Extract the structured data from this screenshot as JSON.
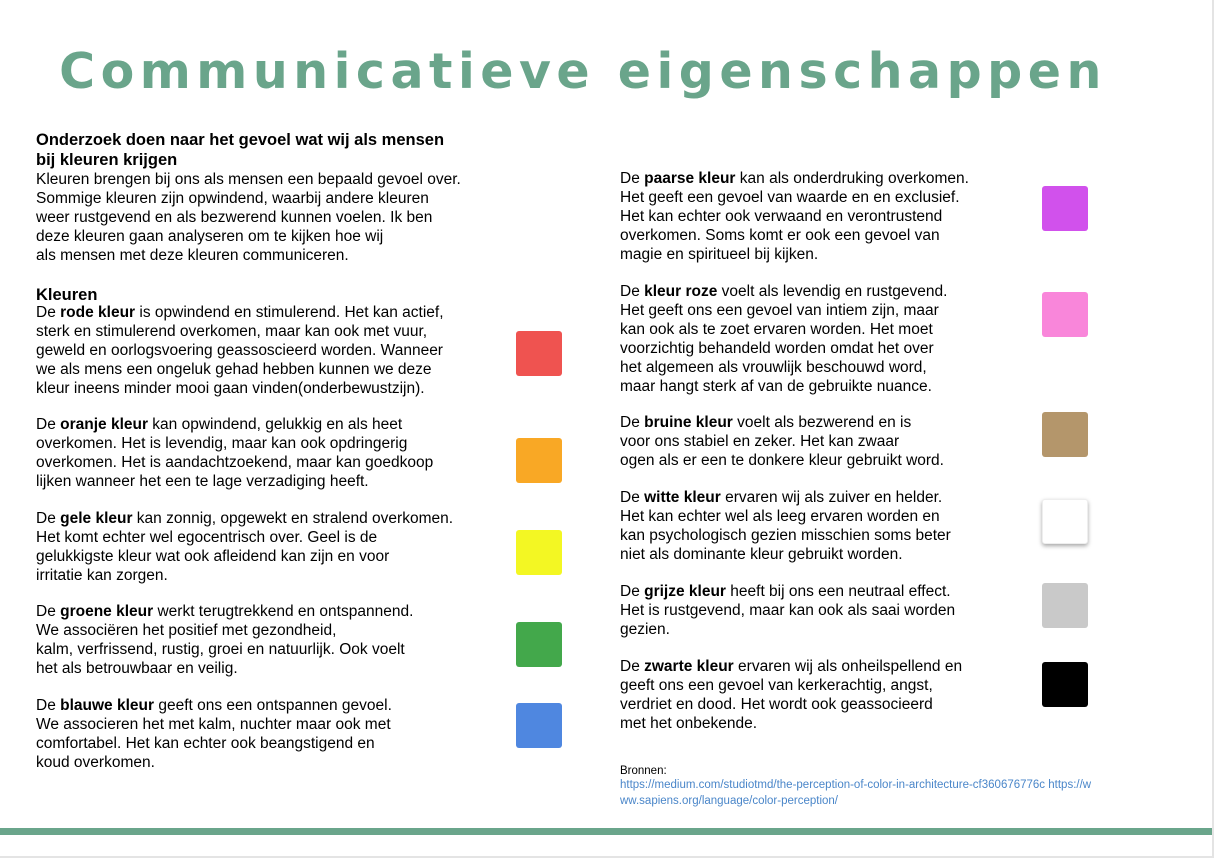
{
  "title": "Communicatieve eigenschappen",
  "intro": {
    "heading": "Onderzoek doen naar het gevoel wat wij als mensen\nbij kleuren krijgen",
    "text": "Kleuren brengen bij ons als mensen een bepaald gevoel over.\nSommige kleuren zijn opwindend, waarbij andere kleuren\nweer rustgevend en als bezwerend kunnen voelen. Ik ben\ndeze kleuren gaan analyseren om te kijken hoe wij\nals mensen met deze kleuren communiceren."
  },
  "section_heading": "Kleuren",
  "colors": [
    {
      "id": "red",
      "pre": "De ",
      "bold": "rode kleur",
      "post": " is opwindend en stimulerend. Het kan actief,\nsterk en stimulerend overkomen, maar kan ook met vuur,\ngeweld en oorlogsvoering geassoscieerd worden. Wanneer\nwe als mens een ongeluk gehad hebben kunnen we deze\nkleur ineens minder mooi gaan vinden(onderbewustzijn).",
      "swatch": "#ef5350"
    },
    {
      "id": "orange",
      "pre": "De ",
      "bold": "oranje kleur",
      "post": " kan opwindend, gelukkig en als heet\noverkomen. Het is levendig, maar kan ook opdringerig\noverkomen. Het is aandachtzoekend, maar kan goedkoop\nlijken wanneer het een te lage verzadiging heeft.",
      "swatch": "#f9a825"
    },
    {
      "id": "yellow",
      "pre": "De ",
      "bold": "gele kleur",
      "post": " kan zonnig, opgewekt en stralend overkomen.\nHet komt echter wel egocentrisch over. Geel is de\ngelukkigste kleur wat ook afleidend kan zijn en voor\nirritatie kan zorgen.",
      "swatch": "#f3f723"
    },
    {
      "id": "green",
      "pre": "De ",
      "bold": "groene kleur",
      "post": " werkt terugtrekkend en ontspannend.\nWe associëren het positief met gezondheid,\nkalm, verfrissend, rustig, groei en natuurlijk. Ook voelt\nhet als betrouwbaar en veilig.",
      "swatch": "#43a84b"
    },
    {
      "id": "blue",
      "pre": "De ",
      "bold": "blauwe kleur",
      "post": " geeft ons een ontspannen gevoel.\nWe associeren het met kalm, nuchter maar ook met\ncomfortabel. Het kan echter ook beangstigend en\nkoud overkomen.",
      "swatch": "#4f87e0"
    },
    {
      "id": "purple",
      "pre": "De ",
      "bold": "paarse kleur",
      "post": " kan als onderdruking overkomen.\nHet geeft een gevoel van waarde en en exclusief.\nHet kan echter ook verwaand en verontrustend\noverkomen. Soms komt er ook een gevoel van\nmagie en spiritueel bij kijken.",
      "swatch": "#d151ec"
    },
    {
      "id": "pink",
      "pre": "De ",
      "bold": "kleur roze",
      "post": " voelt als levendig en rustgevend.\nHet geeft ons een gevoel van intiem zijn, maar\nkan ook als te zoet ervaren worden. Het moet\nvoorzichtig behandeld worden omdat het over\nhet algemeen als vrouwlijk beschouwd word,\nmaar hangt sterk af van de gebruikte nuance.",
      "swatch": "#f986da"
    },
    {
      "id": "brown",
      "pre": "De ",
      "bold": "bruine kleur",
      "post": " voelt als bezwerend en is\nvoor ons stabiel en zeker. Het kan zwaar\nogen als er een te donkere kleur gebruikt word.",
      "swatch": "#b4966b"
    },
    {
      "id": "white",
      "pre": "De ",
      "bold": "witte kleur",
      "post": " ervaren wij als zuiver en helder.\nHet kan echter wel als leeg ervaren worden en\nkan psychologisch gezien misschien soms beter\nniet als dominante kleur gebruikt worden.",
      "swatch": "#ffffff"
    },
    {
      "id": "grey",
      "pre": "De ",
      "bold": "grijze kleur",
      "post": " heeft bij ons een neutraal effect.\nHet is rustgevend, maar kan ook als saai worden\ngezien.",
      "swatch": "#c9c9c9"
    },
    {
      "id": "black",
      "pre": "De ",
      "bold": "zwarte kleur",
      "post": " ervaren wij als onheilspellend en\ngeeft ons een gevoel van kerkerachtig, angst,\nverdriet en dood. Het wordt ook geassocieerd\nmet het onbekende.",
      "swatch": "#000000"
    }
  ],
  "sources": {
    "label": "Bronnen:",
    "links": "https://medium.com/studiotmd/the-perception-of-color-in-architecture-cf360676776c https://www.sapiens.org/language/color-perception/"
  },
  "accent_color": "#6aa58b",
  "link_color": "#4a86c9"
}
